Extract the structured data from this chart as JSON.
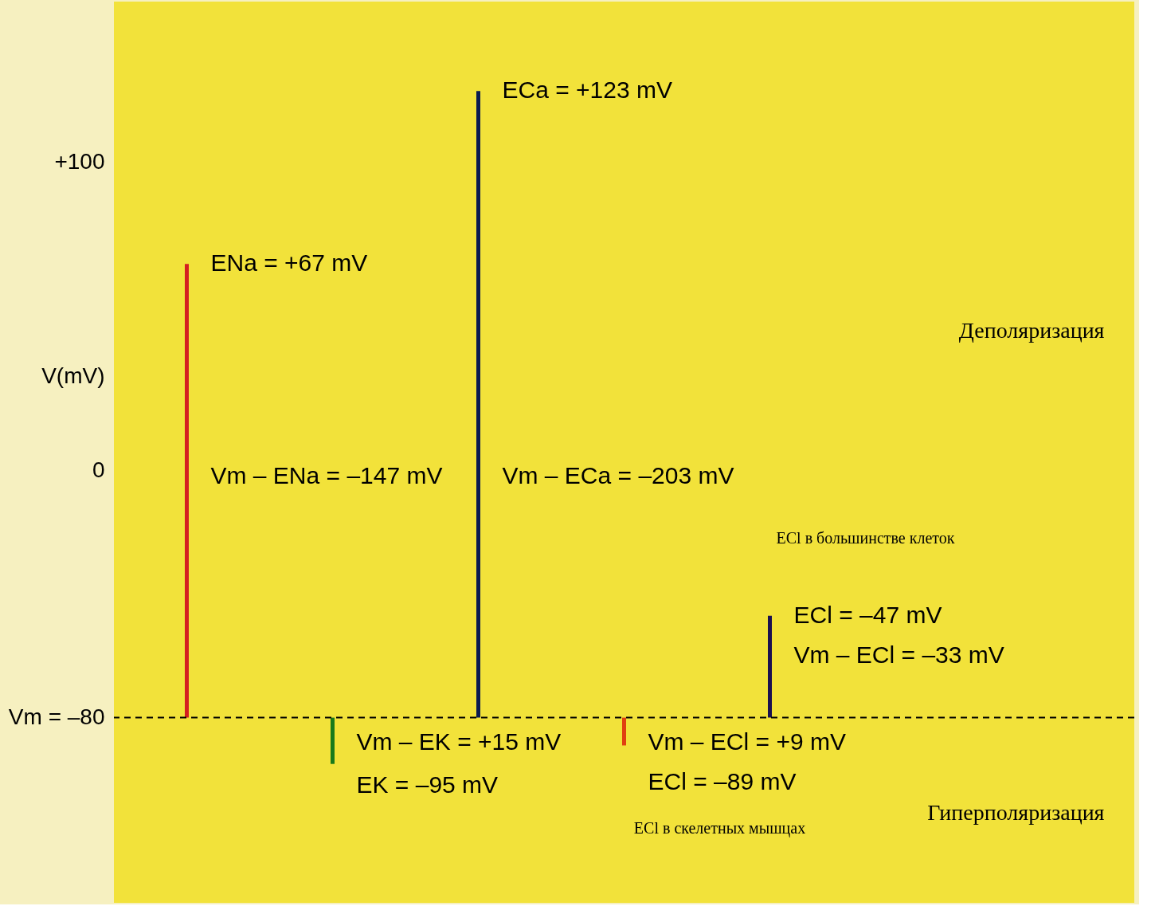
{
  "chart_data": {
    "type": "bar",
    "ylabel": "V(mV)",
    "categories": [
      null,
      null,
      null,
      null,
      null
    ],
    "base": [
      -80,
      -80,
      -80,
      -80,
      -80
    ],
    "values": [
      147,
      -15,
      203,
      -9,
      33
    ],
    "colors": [
      "#d42020",
      "#1a7a1a",
      "#0a1a50",
      "#e04010",
      "#1a1050"
    ],
    "ylim": [
      -140,
      152
    ],
    "yticks": [
      {
        "value": 100,
        "label": "+100"
      },
      0,
      {
        "value": -80,
        "label": "Vm = –80"
      }
    ],
    "tick_labels": "y",
    "grid": false,
    "ref_lines": [
      {
        "axis": "y",
        "value": -80,
        "line_style": "dashed",
        "color": "#000000"
      }
    ],
    "annotations": [
      "ECa = +123 mV",
      "ENa = +67 mV",
      "Vm – ENa = –147 mV",
      "Vm – ECa = –203 mV",
      "ECl = –47 mV",
      "Vm – ECl = –33 mV",
      "Vm – EK = +15 mV",
      "EK = –95 mV",
      "Vm – ECl = +9 mV",
      "ECl = –89 mV",
      "Деполяризация",
      "Гиперполяризация",
      "ECl в большинстве клеток",
      "ECl в скелетных мышцах"
    ]
  }
}
